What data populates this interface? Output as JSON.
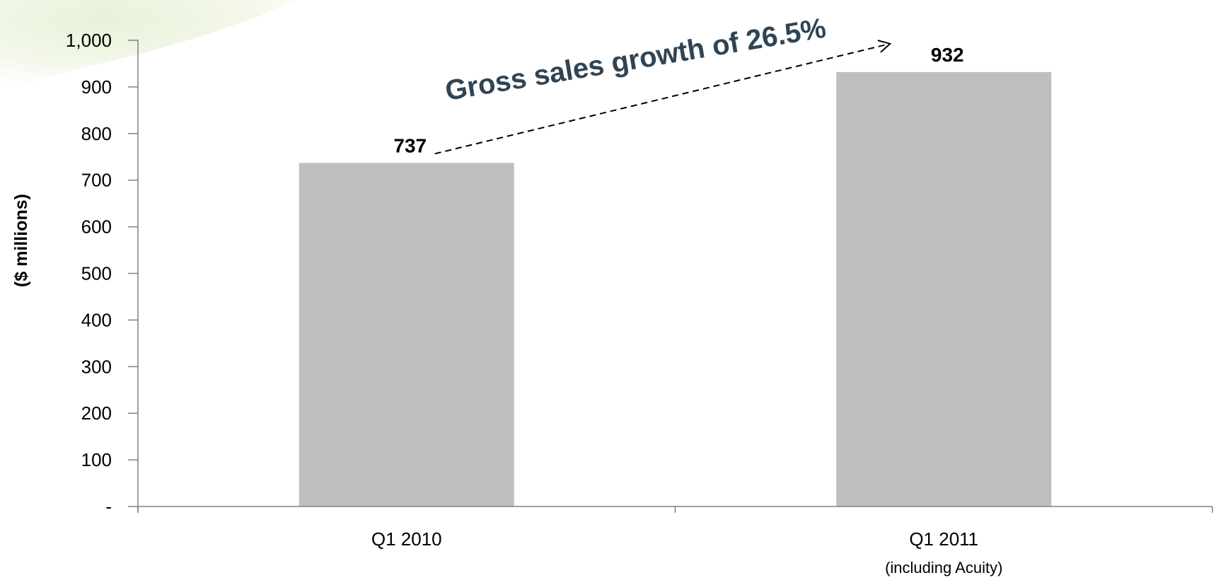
{
  "chart_data": {
    "type": "bar",
    "categories": [
      "Q1 2010",
      "Q1 2011"
    ],
    "category_sublabels": [
      "",
      "(including Acuity)"
    ],
    "values": [
      737,
      932
    ],
    "data_labels": [
      "737",
      "932"
    ],
    "ylabel": "($ millions)",
    "ylim": [
      0,
      1000
    ],
    "yticks": [
      0,
      100,
      200,
      300,
      400,
      500,
      600,
      700,
      800,
      900,
      1000
    ],
    "ytick_labels": [
      "-",
      "100",
      "200",
      "300",
      "400",
      "500",
      "600",
      "700",
      "800",
      "900",
      "1,000"
    ],
    "annotation": "Gross sales growth of 26.5%",
    "grid": false,
    "colors": {
      "bar": "#bfbfbf",
      "axis": "#808080",
      "annotation": "#2f4454",
      "text": "#000000",
      "background_accent": "#e7f0d6"
    }
  }
}
